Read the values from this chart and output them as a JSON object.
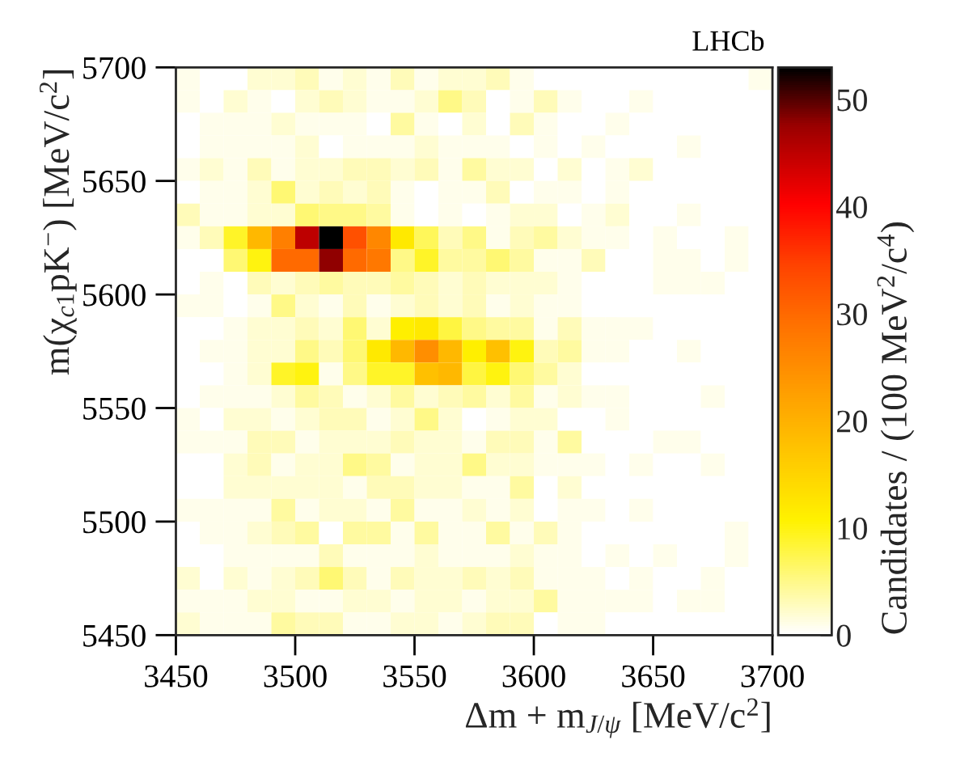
{
  "chart_data": {
    "type": "heatmap",
    "xlabel": "Δm + m$_{J/ψ}$ [MeV/c$^{2}$]",
    "ylabel": "m(χ$_{c1}$pK$^{−}$) [MeV/c$^{2}$]",
    "clabel": "Candidates / (100 MeV$^{2}$/c$^{4}$)",
    "annotations": [
      "LHCb"
    ],
    "x": [
      3455,
      3465,
      3475,
      3485,
      3495,
      3505,
      3515,
      3525,
      3535,
      3545,
      3555,
      3565,
      3575,
      3585,
      3595,
      3605,
      3615,
      3625,
      3635,
      3645,
      3655,
      3665,
      3675,
      3685,
      3695
    ],
    "y": [
      5695,
      5685,
      5675,
      5665,
      5655,
      5645,
      5635,
      5625,
      5615,
      5605,
      5595,
      5585,
      5575,
      5565,
      5555,
      5545,
      5535,
      5525,
      5515,
      5505,
      5495,
      5485,
      5475,
      5465,
      5455
    ],
    "xlim": [
      3450,
      3700
    ],
    "xticks": [
      3450,
      3500,
      3550,
      3600,
      3650,
      3700
    ],
    "ylim": [
      5450,
      5700
    ],
    "yticks": [
      5450,
      5500,
      5550,
      5600,
      5650,
      5700
    ],
    "clim": [
      0,
      53
    ],
    "cticks": [
      0,
      10,
      20,
      30,
      40,
      50
    ],
    "cells": [
      [
        1,
        0,
        0,
        2,
        2,
        3,
        1,
        2,
        1,
        3,
        1,
        2,
        2,
        3,
        1,
        0,
        0,
        0,
        0,
        0,
        0,
        0,
        0,
        0,
        1
      ],
      [
        1,
        0,
        2,
        1,
        0,
        2,
        3,
        2,
        1,
        1,
        2,
        5,
        3,
        0,
        1,
        3,
        1,
        0,
        0,
        1,
        0,
        0,
        0,
        0,
        0
      ],
      [
        0,
        1,
        1,
        1,
        2,
        1,
        1,
        1,
        0,
        4,
        1,
        0,
        2,
        0,
        3,
        1,
        0,
        0,
        1,
        0,
        0,
        0,
        0,
        0,
        0
      ],
      [
        0,
        1,
        1,
        1,
        1,
        2,
        0,
        1,
        1,
        1,
        2,
        1,
        1,
        1,
        0,
        1,
        0,
        1,
        0,
        0,
        0,
        1,
        0,
        0,
        0
      ],
      [
        1,
        2,
        1,
        3,
        1,
        2,
        2,
        3,
        3,
        2,
        3,
        1,
        4,
        2,
        2,
        0,
        2,
        0,
        1,
        2,
        0,
        0,
        0,
        0,
        0
      ],
      [
        0,
        1,
        1,
        2,
        6,
        2,
        3,
        2,
        3,
        1,
        0,
        1,
        1,
        3,
        0,
        1,
        1,
        0,
        1,
        0,
        0,
        0,
        0,
        0,
        0
      ],
      [
        3,
        1,
        1,
        2,
        2,
        6,
        5,
        5,
        4,
        1,
        0,
        1,
        0,
        1,
        2,
        2,
        0,
        1,
        2,
        0,
        0,
        1,
        0,
        0,
        0
      ],
      [
        1,
        3,
        9,
        19,
        27,
        45,
        53,
        33,
        26,
        12,
        7,
        3,
        5,
        1,
        3,
        4,
        2,
        1,
        1,
        0,
        1,
        0,
        0,
        1,
        0
      ],
      [
        0,
        0,
        6,
        10,
        30,
        30,
        48,
        30,
        28,
        5,
        9,
        4,
        4,
        6,
        4,
        1,
        1,
        3,
        0,
        0,
        1,
        1,
        0,
        1,
        0
      ],
      [
        0,
        1,
        0,
        3,
        2,
        3,
        4,
        3,
        3,
        4,
        3,
        2,
        3,
        2,
        2,
        2,
        1,
        0,
        0,
        0,
        1,
        1,
        1,
        0,
        0
      ],
      [
        1,
        1,
        0,
        1,
        5,
        2,
        1,
        3,
        1,
        2,
        3,
        2,
        3,
        1,
        2,
        1,
        1,
        0,
        0,
        0,
        0,
        0,
        0,
        0,
        0
      ],
      [
        0,
        0,
        1,
        2,
        2,
        3,
        2,
        6,
        2,
        11,
        12,
        8,
        5,
        4,
        4,
        1,
        3,
        1,
        1,
        1,
        0,
        0,
        0,
        0,
        0
      ],
      [
        0,
        1,
        1,
        2,
        2,
        5,
        3,
        6,
        12,
        19,
        25,
        19,
        11,
        18,
        10,
        3,
        4,
        1,
        1,
        0,
        0,
        1,
        0,
        0,
        0
      ],
      [
        0,
        0,
        1,
        2,
        9,
        10,
        1,
        5,
        9,
        9,
        18,
        19,
        8,
        10,
        6,
        4,
        2,
        0,
        0,
        0,
        0,
        0,
        0,
        0,
        0
      ],
      [
        0,
        1,
        1,
        1,
        2,
        4,
        3,
        1,
        2,
        4,
        2,
        3,
        4,
        2,
        4,
        1,
        2,
        1,
        1,
        0,
        0,
        0,
        1,
        0,
        0
      ],
      [
        1,
        0,
        2,
        2,
        1,
        2,
        3,
        3,
        1,
        2,
        5,
        2,
        0,
        1,
        2,
        2,
        0,
        0,
        1,
        0,
        0,
        0,
        0,
        0,
        0
      ],
      [
        1,
        1,
        1,
        3,
        3,
        1,
        2,
        2,
        2,
        3,
        2,
        2,
        1,
        3,
        3,
        1,
        4,
        0,
        0,
        0,
        1,
        1,
        0,
        0,
        0
      ],
      [
        0,
        0,
        2,
        3,
        1,
        2,
        2,
        5,
        4,
        1,
        2,
        2,
        5,
        2,
        2,
        1,
        1,
        1,
        0,
        1,
        0,
        0,
        1,
        0,
        0
      ],
      [
        0,
        0,
        2,
        2,
        2,
        2,
        2,
        1,
        3,
        3,
        2,
        2,
        1,
        1,
        4,
        0,
        2,
        0,
        0,
        0,
        0,
        0,
        0,
        0,
        0
      ],
      [
        1,
        1,
        1,
        1,
        4,
        1,
        2,
        2,
        1,
        4,
        1,
        1,
        2,
        1,
        2,
        0,
        1,
        1,
        0,
        1,
        0,
        0,
        0,
        0,
        0
      ],
      [
        0,
        1,
        1,
        2,
        3,
        4,
        0,
        4,
        4,
        1,
        4,
        1,
        1,
        4,
        1,
        3,
        1,
        0,
        0,
        0,
        0,
        0,
        0,
        1,
        0
      ],
      [
        0,
        0,
        1,
        1,
        1,
        1,
        3,
        1,
        1,
        1,
        2,
        1,
        1,
        1,
        2,
        1,
        1,
        0,
        1,
        0,
        1,
        0,
        0,
        1,
        0
      ],
      [
        2,
        0,
        2,
        1,
        2,
        3,
        6,
        3,
        1,
        3,
        2,
        2,
        3,
        2,
        3,
        1,
        1,
        1,
        0,
        1,
        0,
        0,
        1,
        0,
        0
      ],
      [
        1,
        1,
        1,
        2,
        2,
        1,
        1,
        2,
        2,
        1,
        2,
        2,
        1,
        2,
        2,
        4,
        1,
        1,
        1,
        1,
        0,
        1,
        1,
        0,
        0
      ],
      [
        2,
        1,
        1,
        1,
        4,
        3,
        3,
        1,
        1,
        2,
        2,
        1,
        2,
        3,
        3,
        0,
        1,
        1,
        0,
        0,
        0,
        0,
        0,
        0,
        0
      ]
    ]
  }
}
